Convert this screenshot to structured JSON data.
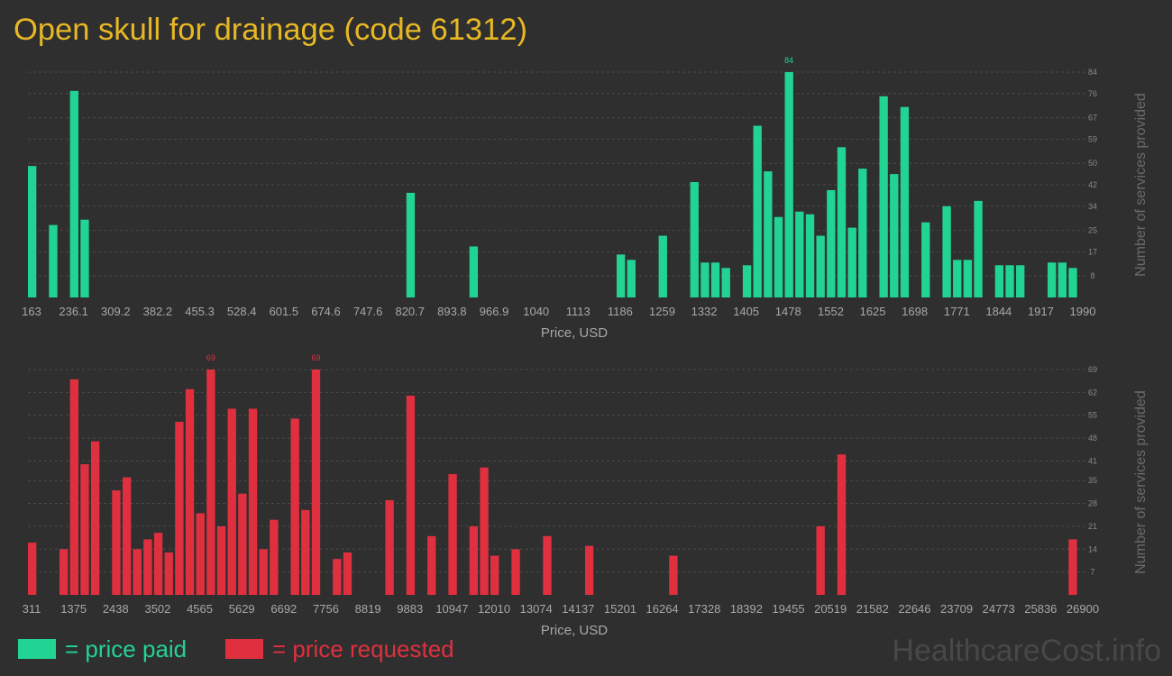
{
  "title": "Open skull for drainage (code 61312)",
  "watermark": "HealthcareCost.info",
  "label_max": true,
  "chart_data": [
    {
      "type": "histogram",
      "xlabel": "Price, USD",
      "ylabel": "Number of services provided",
      "grid": true,
      "xlim": [
        163,
        1990
      ],
      "ylim": [
        0,
        84
      ],
      "xticks": [
        163,
        236.1,
        309.2,
        382.2,
        455.3,
        528.4,
        601.5,
        674.6,
        747.6,
        820.7,
        893.8,
        966.9,
        1040,
        1113,
        1186,
        1259,
        1332,
        1405,
        1478,
        1552,
        1625,
        1698,
        1771,
        1844,
        1917,
        1990
      ],
      "yticks": [
        8,
        17,
        25,
        34,
        42,
        50,
        59,
        67,
        76,
        84
      ],
      "bins": [
        163,
        181.27,
        199.54,
        217.81,
        236.08,
        254.35,
        272.62,
        290.89,
        309.16,
        327.43,
        345.7,
        363.97,
        382.24,
        400.51,
        418.78,
        437.05,
        455.32,
        473.59,
        491.86,
        510.13,
        528.4,
        546.67,
        564.94,
        583.21,
        601.48,
        619.75,
        638.02,
        656.29,
        674.56,
        692.83,
        711.1,
        729.37,
        747.64,
        765.91,
        784.18,
        802.45,
        820.72,
        838.99,
        857.26,
        875.53,
        893.8,
        912.07,
        930.34,
        948.61,
        966.88,
        985.15,
        1003.42,
        1021.69,
        1039.96,
        1058.23,
        1076.5,
        1094.77,
        1113.04,
        1131.31,
        1149.58,
        1167.85,
        1186.12,
        1204.39,
        1222.66,
        1240.93,
        1259.2,
        1277.47,
        1295.74,
        1314.01,
        1332.28,
        1350.55,
        1368.82,
        1387.09,
        1405.36,
        1423.63,
        1441.9,
        1460.17,
        1478.44,
        1496.71,
        1514.98,
        1533.25,
        1551.52,
        1569.79,
        1588.06,
        1606.33,
        1624.6,
        1642.87,
        1661.14,
        1679.41,
        1697.68,
        1715.95,
        1734.22,
        1752.49,
        1770.76,
        1789.03,
        1807.3,
        1825.57,
        1843.84,
        1862.11,
        1880.38,
        1898.65,
        1916.92,
        1935.19,
        1953.46,
        1971.73,
        1990
      ],
      "series": [
        {
          "name": "= price paid",
          "color": "#22d494",
          "values": [
            49,
            0,
            27,
            0,
            77,
            29,
            0,
            0,
            0,
            0,
            0,
            0,
            0,
            0,
            0,
            0,
            0,
            0,
            0,
            0,
            0,
            0,
            0,
            0,
            0,
            0,
            0,
            0,
            0,
            0,
            0,
            0,
            0,
            0,
            0,
            0,
            39,
            0,
            0,
            0,
            0,
            0,
            19,
            0,
            0,
            0,
            0,
            0,
            0,
            0,
            0,
            0,
            0,
            0,
            0,
            0,
            16,
            14,
            0,
            0,
            23,
            0,
            0,
            43,
            13,
            13,
            11,
            0,
            12,
            64,
            47,
            30,
            84,
            32,
            31,
            23,
            40,
            56,
            26,
            48,
            0,
            75,
            46,
            71,
            0,
            28,
            0,
            34,
            14,
            14,
            36,
            0,
            12,
            12,
            12,
            0,
            0,
            13,
            13,
            11
          ]
        }
      ]
    },
    {
      "type": "histogram",
      "xlabel": "Price, USD",
      "ylabel": "Number of services provided",
      "grid": true,
      "xlim": [
        311,
        26900
      ],
      "ylim": [
        0,
        69
      ],
      "xticks": [
        311,
        1375,
        2438,
        3502,
        4565,
        5629,
        6692,
        7756,
        8819,
        9883,
        10947,
        12010,
        13074,
        14137,
        15201,
        16264,
        17328,
        18392,
        19455,
        20519,
        21582,
        22646,
        23709,
        24773,
        25836,
        26900
      ],
      "yticks": [
        7,
        14,
        21,
        28,
        35,
        41,
        48,
        55,
        62,
        69
      ],
      "bins": [
        311,
        576.89,
        842.78,
        1108.67,
        1374.56,
        1640.45,
        1906.34,
        2172.23,
        2438.12,
        2704.01,
        2969.9,
        3235.79,
        3501.68,
        3767.57,
        4033.46,
        4299.35,
        4565.24,
        4831.13,
        5097.02,
        5362.91,
        5628.8,
        5894.69,
        6160.58,
        6426.47,
        6692.36,
        6958.25,
        7224.14,
        7490.03,
        7755.92,
        8021.81,
        8287.7,
        8553.59,
        8819.48,
        9085.37,
        9351.26,
        9617.15,
        9883.04,
        10148.93,
        10414.82,
        10680.71,
        10946.6,
        11212.49,
        11478.38,
        11744.27,
        12010.16,
        12276.05,
        12541.94,
        12807.83,
        13073.72,
        13339.61,
        13605.5,
        13871.39,
        14137.28,
        14403.17,
        14669.06,
        14934.95,
        15200.84,
        15466.73,
        15732.62,
        15998.51,
        16264.4,
        16530.29,
        16796.18,
        17062.07,
        17327.96,
        17593.85,
        17859.74,
        18125.63,
        18391.52,
        18657.41,
        18923.3,
        19189.19,
        19455.08,
        19720.97,
        19986.86,
        20252.75,
        20518.64,
        20784.53,
        21050.42,
        21316.31,
        21582.2,
        21848.09,
        22113.98,
        22379.87,
        22645.76,
        22911.65,
        23177.54,
        23443.43,
        23709.32,
        23975.21,
        24241.1,
        24506.99,
        24772.88,
        25038.77,
        25304.66,
        25570.55,
        25836.44,
        26102.33,
        26368.22,
        26634.11,
        26900
      ],
      "series": [
        {
          "name": "= price requested",
          "color": "#e0303f",
          "values": [
            16,
            0,
            0,
            14,
            66,
            40,
            47,
            0,
            32,
            36,
            14,
            17,
            19,
            13,
            53,
            63,
            25,
            69,
            21,
            57,
            31,
            57,
            14,
            23,
            0,
            54,
            26,
            69,
            0,
            11,
            13,
            0,
            0,
            0,
            29,
            0,
            61,
            0,
            18,
            0,
            37,
            0,
            21,
            39,
            12,
            0,
            14,
            0,
            0,
            18,
            0,
            0,
            0,
            15,
            0,
            0,
            0,
            0,
            0,
            0,
            0,
            12,
            0,
            0,
            0,
            0,
            0,
            0,
            0,
            0,
            0,
            0,
            0,
            0,
            0,
            21,
            0,
            43,
            0,
            0,
            0,
            0,
            0,
            0,
            0,
            0,
            0,
            0,
            0,
            0,
            0,
            0,
            0,
            0,
            0,
            0,
            0,
            0,
            0,
            17
          ]
        }
      ]
    }
  ]
}
